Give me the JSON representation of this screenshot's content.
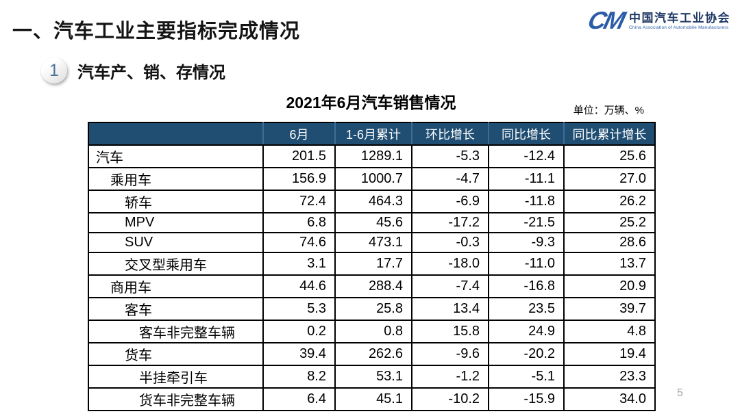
{
  "page": {
    "title": "一、汽车工业主要指标完成情况",
    "page_number": "5"
  },
  "logo": {
    "monogram": "CM",
    "name_cn": "中国汽车工业协会",
    "name_en": "China Association of Automobile Manufacturers"
  },
  "section": {
    "number": "1",
    "title": "汽车产、销、存情况"
  },
  "table": {
    "title": "2021年6月汽车销售情况",
    "unit_note": "单位：万辆、%",
    "columns": [
      "",
      "6月",
      "1-6月累计",
      "环比增长",
      "同比增长",
      "同比累计增长"
    ],
    "rows": [
      {
        "label": "汽车",
        "indent": 0,
        "highlight": "blue",
        "values": [
          "201.5",
          "1289.1",
          "-5.3",
          "-12.4",
          "25.6"
        ]
      },
      {
        "label": "乘用车",
        "indent": 1,
        "highlight": "gray",
        "values": [
          "156.9",
          "1000.7",
          "-4.7",
          "-11.1",
          "27.0"
        ]
      },
      {
        "label": "轿车",
        "indent": 2,
        "highlight": "white",
        "values": [
          "72.4",
          "464.3",
          "-6.9",
          "-11.8",
          "26.2"
        ]
      },
      {
        "label": "MPV",
        "indent": 2,
        "highlight": "white",
        "values": [
          "6.8",
          "45.6",
          "-17.2",
          "-21.5",
          "25.2"
        ]
      },
      {
        "label": "SUV",
        "indent": 2,
        "highlight": "white",
        "values": [
          "74.6",
          "473.1",
          "-0.3",
          "-9.3",
          "28.6"
        ]
      },
      {
        "label": "交叉型乘用车",
        "indent": 2,
        "highlight": "white",
        "values": [
          "3.1",
          "17.7",
          "-18.0",
          "-11.0",
          "13.7"
        ]
      },
      {
        "label": "商用车",
        "indent": 1,
        "highlight": "gray",
        "values": [
          "44.6",
          "288.4",
          "-7.4",
          "-16.8",
          "20.9"
        ]
      },
      {
        "label": "客车",
        "indent": 2,
        "highlight": "white",
        "values": [
          "5.3",
          "25.8",
          "13.4",
          "23.5",
          "39.7"
        ]
      },
      {
        "label": "客车非完整车辆",
        "indent": 3,
        "highlight": "white",
        "values": [
          "0.2",
          "0.8",
          "15.8",
          "24.9",
          "4.8"
        ]
      },
      {
        "label": "货车",
        "indent": 2,
        "highlight": "white",
        "values": [
          "39.4",
          "262.6",
          "-9.6",
          "-20.2",
          "19.4"
        ]
      },
      {
        "label": "半挂牵引车",
        "indent": 3,
        "highlight": "white",
        "values": [
          "8.2",
          "53.1",
          "-1.2",
          "-5.1",
          "23.3"
        ]
      },
      {
        "label": "货车非完整车辆",
        "indent": 3,
        "highlight": "white",
        "values": [
          "6.4",
          "45.1",
          "-10.2",
          "-15.9",
          "34.0"
        ]
      }
    ]
  },
  "colors": {
    "header_bg": "#1F4E72",
    "header_text": "#FFFFFF",
    "row_highlight_blue": "#C7DBEA",
    "row_highlight_gray": "#D9D9D9",
    "logo_blue": "#2B5CA8",
    "section_number_blue": "#4A7299",
    "page_number_gray": "#A3A3A3"
  }
}
